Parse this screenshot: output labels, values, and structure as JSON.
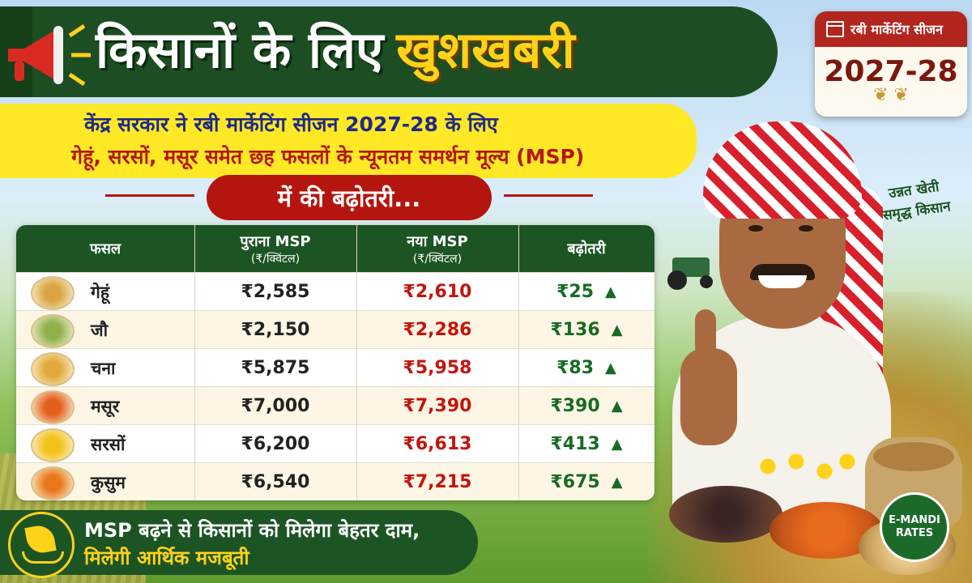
{
  "header": {
    "title_white": "किसानों के लिए",
    "title_yellow": "खुशखबरी"
  },
  "season_badge": {
    "label": "रबी मार्केटिंग सीजन",
    "year": "2027-28"
  },
  "subheading": {
    "line1": "केंद्र सरकार ने रबी मार्केटिंग सीजन 2027-28 के लिए",
    "line2": "गेहूं, सरसों, मसूर समेत छह फसलों के न्यूनतम समर्थन मूल्य (MSP)",
    "line3": "में की बढ़ोतरी..."
  },
  "table": {
    "headers": {
      "crop": "फसल",
      "old_msp": "पुराना MSP",
      "old_unit": "(₹/क्विंटल)",
      "new_msp": "नया MSP",
      "new_unit": "(₹/क्विंटल)",
      "increase": "बढ़ोतरी"
    },
    "rows": [
      {
        "crop": "गेहूं",
        "old": "₹2,585",
        "new": "₹2,610",
        "increase": "₹25",
        "icon": "wheat-icon",
        "color": "#d9a441"
      },
      {
        "crop": "जौ",
        "old": "₹2,150",
        "new": "₹2,286",
        "increase": "₹136",
        "icon": "barley-icon",
        "color": "#8fb04a"
      },
      {
        "crop": "चना",
        "old": "₹5,875",
        "new": "₹5,958",
        "increase": "₹83",
        "icon": "chickpea-icon",
        "color": "#e0a93a"
      },
      {
        "crop": "मसूर",
        "old": "₹7,000",
        "new": "₹7,390",
        "increase": "₹390",
        "icon": "lentil-icon",
        "color": "#e2601c"
      },
      {
        "crop": "सरसों",
        "old": "₹6,200",
        "new": "₹6,613",
        "increase": "₹413",
        "icon": "mustard-icon",
        "color": "#f2c21a"
      },
      {
        "crop": "कुसुम",
        "old": "₹6,540",
        "new": "₹7,215",
        "increase": "₹675",
        "icon": "safflower-icon",
        "color": "#e8781a"
      }
    ]
  },
  "footer": {
    "line1": "MSP बढ़ने से किसानों को मिलेगा बेहतर दाम,",
    "line2": "मिलेगी आर्थिक मजबूती"
  },
  "slogan": {
    "line1": "उन्नत खेती",
    "line2": "समृद्ध किसान"
  },
  "logo": {
    "line1": "E-MANDI",
    "line2": "RATES"
  }
}
